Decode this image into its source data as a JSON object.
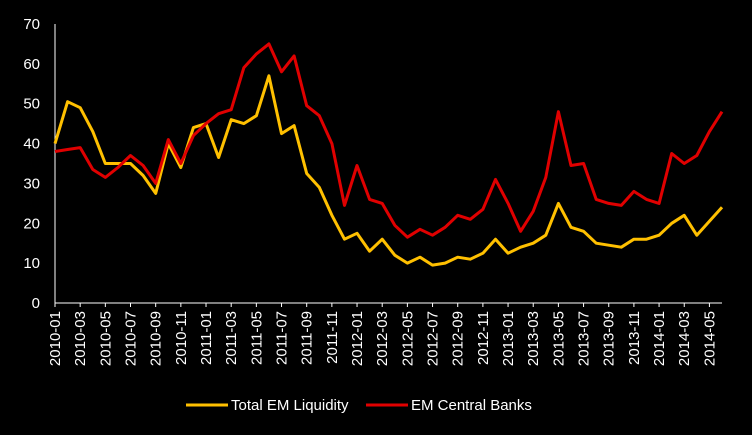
{
  "chart_data": {
    "type": "line",
    "title": "",
    "xlabel": "",
    "ylabel": "",
    "ylim": [
      0,
      70
    ],
    "y_ticks": [
      0,
      10,
      20,
      30,
      40,
      50,
      60,
      70
    ],
    "grid": false,
    "legend_position": "bottom",
    "background": "#000000",
    "text_color": "#ffffff",
    "x": [
      "2010-01",
      "2010-02",
      "2010-03",
      "2010-04",
      "2010-05",
      "2010-06",
      "2010-07",
      "2010-08",
      "2010-09",
      "2010-10",
      "2010-11",
      "2010-12",
      "2011-01",
      "2011-02",
      "2011-03",
      "2011-04",
      "2011-05",
      "2011-06",
      "2011-07",
      "2011-08",
      "2011-09",
      "2011-10",
      "2011-11",
      "2011-12",
      "2012-01",
      "2012-02",
      "2012-03",
      "2012-04",
      "2012-05",
      "2012-06",
      "2012-07",
      "2012-08",
      "2012-09",
      "2012-10",
      "2012-11",
      "2012-12",
      "2013-01",
      "2013-02",
      "2013-03",
      "2013-04",
      "2013-05",
      "2013-06",
      "2013-07",
      "2013-08",
      "2013-09",
      "2013-10",
      "2013-11",
      "2013-12",
      "2014-01",
      "2014-02",
      "2014-03",
      "2014-04",
      "2014-05",
      "2014-06"
    ],
    "x_tick_labels": [
      "2010-01",
      "2010-03",
      "2010-05",
      "2010-07",
      "2010-09",
      "2010-11",
      "2011-01",
      "2011-03",
      "2011-05",
      "2011-07",
      "2011-09",
      "2011-11",
      "2012-01",
      "2012-03",
      "2012-05",
      "2012-07",
      "2012-09",
      "2012-11",
      "2013-01",
      "2013-03",
      "2013-05",
      "2013-07",
      "2013-09",
      "2013-11",
      "2014-01",
      "2014-03",
      "2014-05"
    ],
    "series": [
      {
        "name": "Total EM Liquidity",
        "color": "#FFC000",
        "values": [
          40,
          50.5,
          49,
          43,
          35,
          35,
          35,
          32,
          27.5,
          40,
          34,
          44,
          45,
          36.5,
          46,
          45,
          47,
          57,
          42.5,
          44.5,
          32.5,
          29,
          22,
          16,
          17.5,
          13,
          16,
          12,
          10,
          11.5,
          9.5,
          10,
          11.5,
          11,
          12.5,
          16,
          12.5,
          14,
          15,
          17,
          25,
          19,
          18,
          15,
          14.5,
          14,
          16,
          16,
          17,
          20,
          22,
          17,
          20.5,
          24
        ]
      },
      {
        "name": "EM Central Banks",
        "color": "#E00000",
        "values": [
          38,
          38.5,
          39,
          33.5,
          31.5,
          34,
          37,
          34.5,
          30,
          41,
          35,
          42,
          45,
          47.5,
          48.5,
          59,
          62.5,
          65,
          58,
          62,
          49.5,
          47,
          40,
          24.5,
          34.5,
          26,
          25,
          19.5,
          16.5,
          18.5,
          17,
          19,
          22,
          21,
          23.5,
          31,
          25,
          18,
          23,
          31.5,
          48,
          34.5,
          35,
          26,
          25,
          24.5,
          28,
          26,
          25,
          37.5,
          35,
          37,
          43,
          48
        ]
      }
    ]
  }
}
